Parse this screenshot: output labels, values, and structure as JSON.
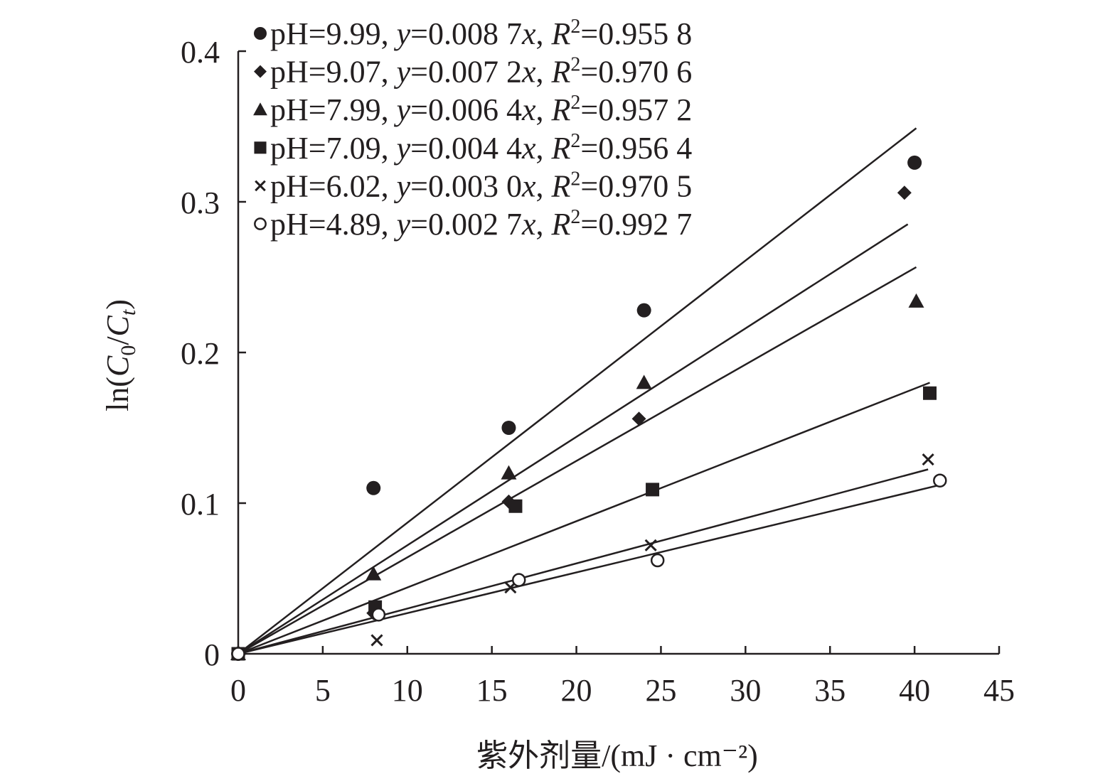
{
  "chart_data": {
    "type": "scatter",
    "xlabel": "紫外剂量/(mJ · cm⁻²)",
    "ylabel": "ln(C0/Ct)",
    "xlim": [
      0,
      45
    ],
    "ylim": [
      0,
      0.4
    ],
    "x_ticks": [
      "0",
      "5",
      "10",
      "15",
      "20",
      "25",
      "30",
      "35",
      "40",
      "45"
    ],
    "y_ticks": [
      "0",
      "0.1",
      "0.2",
      "0.3",
      "0.4"
    ],
    "grid": false,
    "legend_position": "top-left",
    "series": [
      {
        "name": "pH=9.99, y=0.008 7x, R2=0.955 8",
        "label_parts": {
          "ph": "pH=9.99, ",
          "y": "y",
          "eq": "=0.008 7",
          "x": "x",
          "sep": ", ",
          "r": "R",
          "sup": "2",
          "r2": "=0.955 8"
        },
        "marker": "filled-circle",
        "slope": 0.0087,
        "x": [
          0,
          8,
          16,
          24,
          40
        ],
        "y": [
          0,
          0.11,
          0.15,
          0.228,
          0.326
        ],
        "fit_x_end": 40.1
      },
      {
        "name": "pH=9.07, y=0.007 2x, R2=0.970 6",
        "label_parts": {
          "ph": "pH=9.07, ",
          "y": "y",
          "eq": "=0.007 2",
          "x": "x",
          "sep": ", ",
          "r": "R",
          "sup": "2",
          "r2": "=0.970 6"
        },
        "marker": "filled-diamond",
        "slope": 0.0072,
        "x": [
          0,
          8,
          16,
          23.7,
          39.4
        ],
        "y": [
          0,
          0.027,
          0.101,
          0.156,
          0.306
        ],
        "fit_x_end": 39.6
      },
      {
        "name": "pH=7.99, y=0.006 4x, R2=0.957 2",
        "label_parts": {
          "ph": "pH=7.99, ",
          "y": "y",
          "eq": "=0.006 4",
          "x": "x",
          "sep": ", ",
          "r": "R",
          "sup": "2",
          "r2": "=0.957 2"
        },
        "marker": "filled-triangle",
        "slope": 0.0064,
        "x": [
          0,
          8,
          16,
          24,
          40.1
        ],
        "y": [
          0,
          0.053,
          0.12,
          0.18,
          0.234
        ],
        "fit_x_end": 40.1
      },
      {
        "name": "pH=7.09, y=0.004 4x, R2=0.956 4",
        "label_parts": {
          "ph": "pH=7.09, ",
          "y": "y",
          "eq": "=0.004 4",
          "x": "x",
          "sep": ", ",
          "r": "R",
          "sup": "2",
          "r2": "=0.956 4"
        },
        "marker": "filled-square",
        "slope": 0.0044,
        "x": [
          0,
          8.1,
          16.4,
          24.5,
          40.9
        ],
        "y": [
          0,
          0.031,
          0.098,
          0.109,
          0.173
        ],
        "fit_x_end": 40.9
      },
      {
        "name": "pH=6.02, y=0.003 0x, R2=0.970 5",
        "label_parts": {
          "ph": "pH=6.02, ",
          "y": "y",
          "eq": "=0.003 0",
          "x": "x",
          "sep": ", ",
          "r": "R",
          "sup": "2",
          "r2": "=0.970 5"
        },
        "marker": "cross",
        "slope": 0.003,
        "x": [
          0,
          8.2,
          16.1,
          24.4,
          40.8
        ],
        "y": [
          0,
          0.009,
          0.044,
          0.072,
          0.129
        ],
        "fit_x_end": 40.8
      },
      {
        "name": "pH=4.89, y=0.002 7x, R2=0.992 7",
        "label_parts": {
          "ph": "pH=4.89, ",
          "y": "y",
          "eq": "=0.002 7",
          "x": "x",
          "sep": ", ",
          "r": "R",
          "sup": "2",
          "r2": "=0.992 7"
        },
        "marker": "open-circle",
        "slope": 0.0027,
        "x": [
          0,
          8.3,
          16.6,
          24.8,
          41.5
        ],
        "y": [
          0,
          0.026,
          0.049,
          0.062,
          0.115
        ],
        "fit_x_end": 41.5
      }
    ]
  }
}
